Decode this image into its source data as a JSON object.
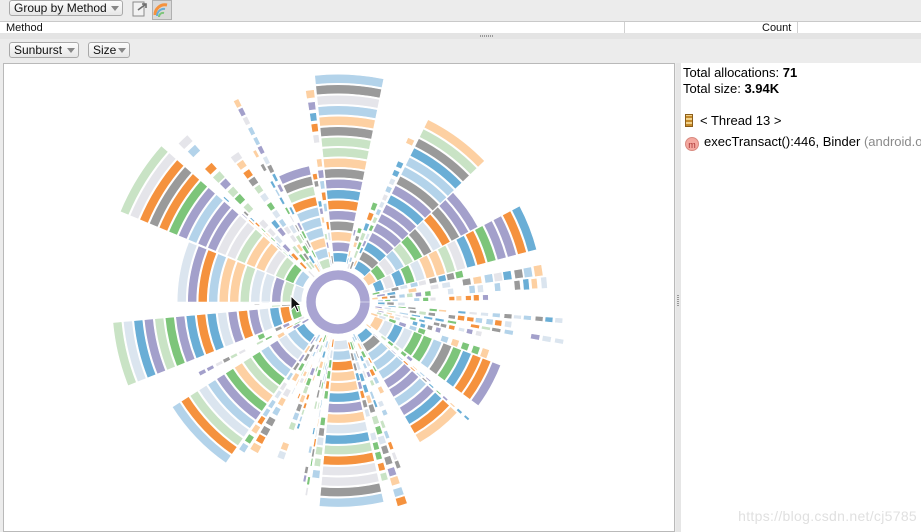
{
  "toolbar": {
    "group_by_label": "Group by Method",
    "export_icon": "export-icon",
    "chart_icon": "sunburst-chart-icon"
  },
  "table_header": {
    "method_label": "Method",
    "count_label": "Count"
  },
  "chart_toolbar": {
    "chart_type_label": "Sunburst",
    "metric_label": "Size"
  },
  "details": {
    "total_allocations_label": "Total allocations:",
    "total_allocations_value": "71",
    "total_size_label": "Total size:",
    "total_size_value": "3.94K",
    "thread_label": "< Thread 13 >",
    "frame_method": "execTransact():446, Binder",
    "frame_package": "(android.os)",
    "method_icon_letter": "m"
  },
  "chart_data": {
    "type": "sunburst",
    "center_ring_color": "#a9a4d2",
    "palette": [
      "#6aaed6",
      "#7dc57a",
      "#f5923e",
      "#a3a0cb",
      "#9a9a9a",
      "#c9e3c5",
      "#fdd0a2",
      "#dbe5ef",
      "#b3d3ea",
      "#e5e5ea"
    ]
  },
  "watermark": "https://blog.csdn.net/cj5785"
}
